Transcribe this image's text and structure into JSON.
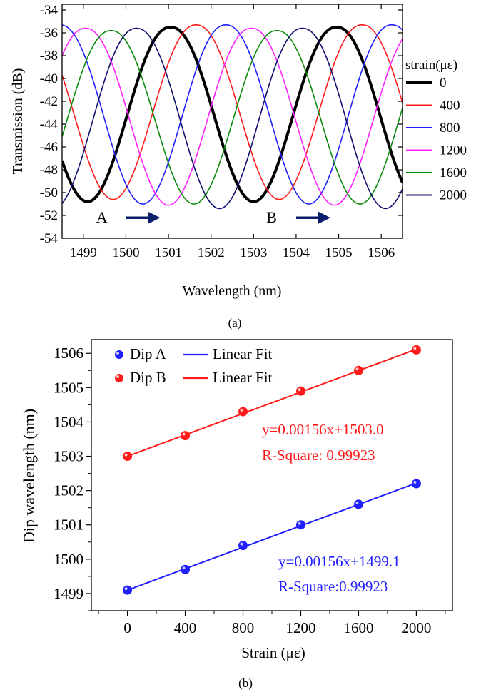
{
  "colors": {
    "black": "#000000",
    "red": "#ff1a1a",
    "blue": "#1f1fff",
    "magenta": "#ff20ff",
    "green": "#0a8a0a",
    "navy": "#101070"
  },
  "chart_data": [
    {
      "panel_label": "(a)",
      "type": "line",
      "title": "",
      "xlabel": "Wavelength (nm)",
      "ylabel": "Transmission (dB)",
      "xlim": [
        1498.5,
        1506.5
      ],
      "ylim": [
        -54,
        -33.5
      ],
      "x_ticks": [
        1499,
        1500,
        1501,
        1502,
        1503,
        1504,
        1505,
        1506
      ],
      "y_ticks": [
        -54,
        -52,
        -50,
        -48,
        -46,
        -44,
        -42,
        -40,
        -38,
        -36,
        -34
      ],
      "grid": false,
      "legend": {
        "title": "strain(με)",
        "placement": "right"
      },
      "series": [
        {
          "name": "0",
          "color": "black",
          "width": 4,
          "dips": [
            1499.1,
            1503.0
          ],
          "period": 3.9,
          "max": -35.5,
          "min": -50.8
        },
        {
          "name": "400",
          "color": "red",
          "width": 1.6,
          "dips": [
            1499.7,
            1503.6
          ],
          "period": 3.9,
          "max": -35.3,
          "min": -50.6
        },
        {
          "name": "800",
          "color": "blue",
          "width": 1.6,
          "dips": [
            1500.4,
            1504.3
          ],
          "period": 3.9,
          "max": -35.3,
          "min": -51.0
        },
        {
          "name": "1200",
          "color": "magenta",
          "width": 1.6,
          "dips": [
            1501.0,
            1504.9
          ],
          "period": 3.9,
          "max": -35.6,
          "min": -51.1
        },
        {
          "name": "1600",
          "color": "green",
          "width": 1.6,
          "dips": [
            1501.6,
            1505.5
          ],
          "period": 3.9,
          "max": -35.8,
          "min": -51.0
        },
        {
          "name": "2000",
          "color": "navy",
          "width": 1.6,
          "dips": [
            1502.2,
            1506.1
          ],
          "period": 3.9,
          "max": -35.6,
          "min": -51.4
        }
      ],
      "annotations": [
        {
          "text": "A",
          "x": 1499.3,
          "y": -52.2
        },
        {
          "text": "B",
          "x": 1503.3,
          "y": -52.2
        }
      ],
      "arrows": [
        {
          "x1": 1500.0,
          "x2": 1500.7,
          "y": -52.2
        },
        {
          "x1": 1504.0,
          "x2": 1504.7,
          "y": -52.2
        }
      ]
    },
    {
      "panel_label": "(b)",
      "type": "scatter",
      "title": "",
      "xlabel": "Strain (με)",
      "ylabel": "Dip wavelength (nm)",
      "xlim": [
        -250,
        2250
      ],
      "ylim": [
        1498.5,
        1506.4
      ],
      "x_ticks": [
        0,
        400,
        800,
        1200,
        1600,
        2000
      ],
      "y_ticks": [
        1499,
        1500,
        1501,
        1502,
        1503,
        1504,
        1505,
        1506
      ],
      "grid": false,
      "legend": {
        "placement": "top-left"
      },
      "series": [
        {
          "name": "Dip A",
          "fit_name": "Linear Fit",
          "color": "blue",
          "x": [
            0,
            400,
            800,
            1200,
            1600,
            2000
          ],
          "y": [
            1499.1,
            1499.7,
            1500.4,
            1501.0,
            1501.6,
            1502.2
          ],
          "fit": {
            "slope": 0.00156,
            "intercept": 1499.1
          },
          "equation": "y=0.00156x+1499.1",
          "r_square": "R-Square:0.99923"
        },
        {
          "name": "Dip B",
          "fit_name": "Linear Fit",
          "color": "red",
          "x": [
            0,
            400,
            800,
            1200,
            1600,
            2000
          ],
          "y": [
            1503.0,
            1503.6,
            1504.3,
            1504.9,
            1505.5,
            1506.1
          ],
          "fit": {
            "slope": 0.00156,
            "intercept": 1503.0
          },
          "equation": "y=0.00156x+1503.0",
          "r_square": "R-Square: 0.99923"
        }
      ]
    }
  ]
}
